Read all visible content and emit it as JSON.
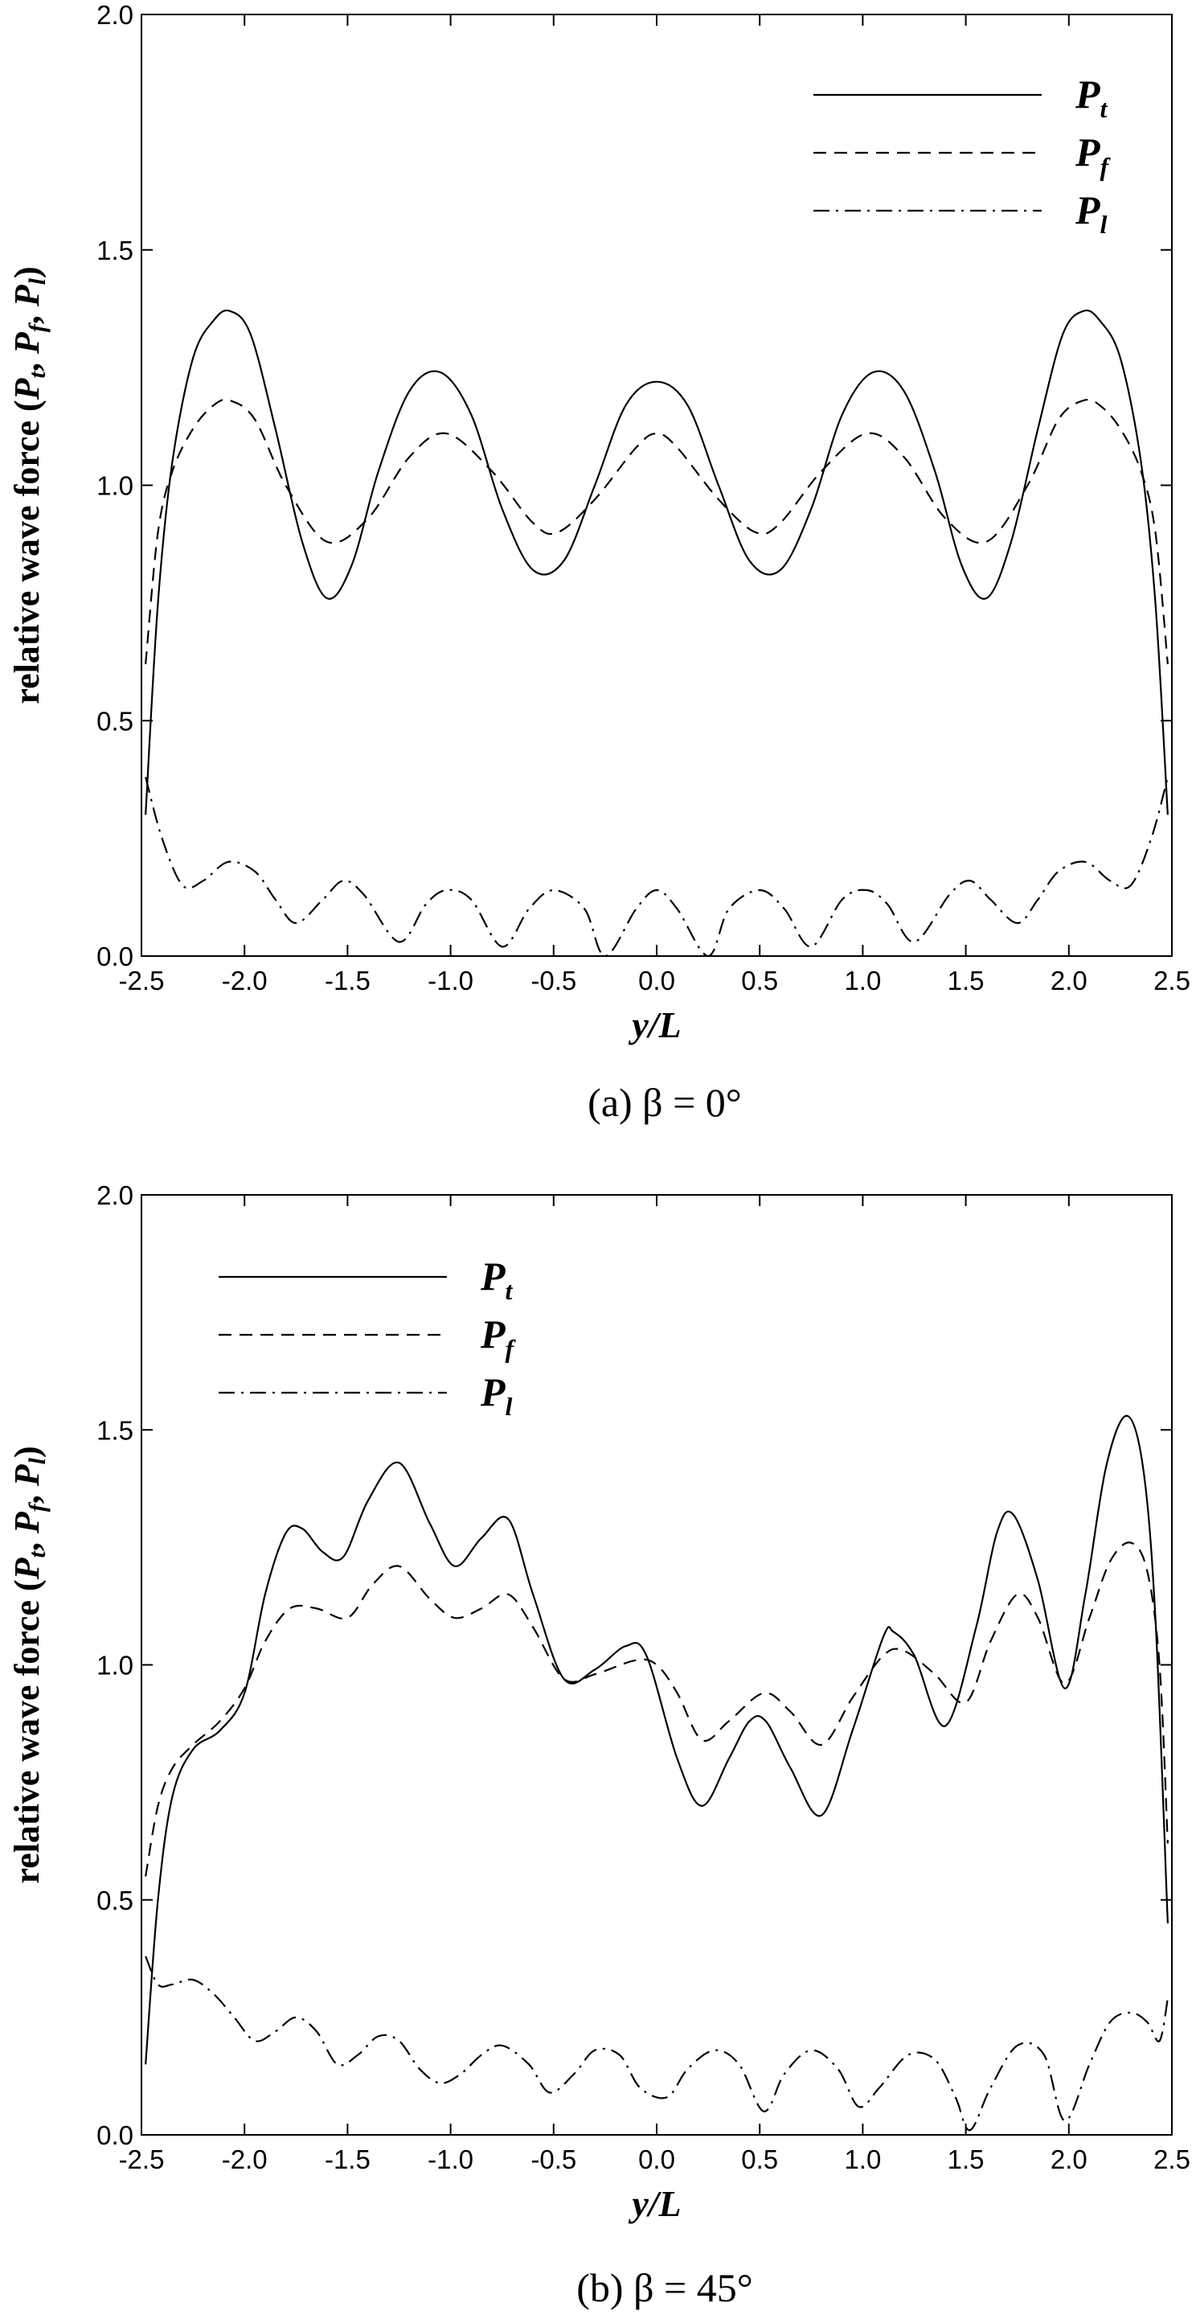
{
  "chart_data": [
    {
      "type": "line",
      "caption": "(a)  β = 0°",
      "xlabel": "y/L",
      "ylabel": "relative wave force (P",
      "ylabel_parts": [
        "relative wave force (",
        "P",
        "t",
        ", ",
        "P",
        "f",
        ", ",
        "P",
        "l",
        ")"
      ],
      "xlim": [
        -2.5,
        2.5
      ],
      "ylim": [
        0.0,
        2.0
      ],
      "xticks": [
        -2.5,
        -2.0,
        -1.5,
        -1.0,
        -0.5,
        0.0,
        0.5,
        1.0,
        1.5,
        2.0,
        2.5
      ],
      "xtick_labels": [
        "-2.5",
        "-2.0",
        "-1.5",
        "-1.0",
        "-0.5",
        "0.0",
        "0.5",
        "1.0",
        "1.5",
        "2.0",
        "2.5"
      ],
      "yticks": [
        0.0,
        0.5,
        1.0,
        1.5,
        2.0
      ],
      "ytick_labels": [
        "0.0",
        "0.5",
        "1.0",
        "1.5",
        "2.0"
      ],
      "legend_position": "top-right",
      "series": [
        {
          "name": "P",
          "sub": "t",
          "style": "solid",
          "x": [
            -2.48,
            -2.42,
            -2.35,
            -2.25,
            -2.15,
            -2.07,
            -1.97,
            -1.85,
            -1.72,
            -1.6,
            -1.48,
            -1.35,
            -1.2,
            -1.05,
            -0.9,
            -0.75,
            -0.6,
            -0.45,
            -0.3,
            -0.15,
            0.0,
            0.15,
            0.3,
            0.45,
            0.6,
            0.75,
            0.9,
            1.05,
            1.2,
            1.35,
            1.48,
            1.6,
            1.72,
            1.85,
            1.97,
            2.07,
            2.15,
            2.25,
            2.35,
            2.42,
            2.48
          ],
          "y": [
            0.3,
            0.75,
            1.05,
            1.27,
            1.35,
            1.37,
            1.32,
            1.12,
            0.88,
            0.76,
            0.83,
            1.03,
            1.2,
            1.24,
            1.15,
            0.95,
            0.82,
            0.84,
            1.0,
            1.17,
            1.22,
            1.17,
            1.0,
            0.84,
            0.82,
            0.95,
            1.15,
            1.24,
            1.2,
            1.03,
            0.83,
            0.76,
            0.88,
            1.12,
            1.32,
            1.37,
            1.35,
            1.27,
            1.05,
            0.75,
            0.3
          ]
        },
        {
          "name": "P",
          "sub": "f",
          "style": "dashed",
          "x": [
            -2.48,
            -2.42,
            -2.35,
            -2.25,
            -2.15,
            -2.07,
            -1.95,
            -1.8,
            -1.6,
            -1.4,
            -1.2,
            -1.02,
            -0.8,
            -0.6,
            -0.48,
            -0.3,
            -0.1,
            0.0,
            0.1,
            0.3,
            0.48,
            0.6,
            0.8,
            1.02,
            1.2,
            1.4,
            1.6,
            1.8,
            1.95,
            2.07,
            2.15,
            2.25,
            2.35,
            2.42,
            2.48
          ],
          "y": [
            0.62,
            0.9,
            1.03,
            1.12,
            1.17,
            1.18,
            1.14,
            1.0,
            0.88,
            0.93,
            1.06,
            1.11,
            1.03,
            0.92,
            0.9,
            0.97,
            1.08,
            1.11,
            1.08,
            0.97,
            0.9,
            0.92,
            1.03,
            1.11,
            1.06,
            0.93,
            0.88,
            1.0,
            1.14,
            1.18,
            1.17,
            1.12,
            1.03,
            0.9,
            0.62
          ]
        },
        {
          "name": "P",
          "sub": "l",
          "style": "dashdot",
          "x": [
            -2.48,
            -2.4,
            -2.3,
            -2.2,
            -2.08,
            -1.95,
            -1.85,
            -1.75,
            -1.62,
            -1.52,
            -1.42,
            -1.25,
            -1.12,
            -1.02,
            -0.9,
            -0.75,
            -0.62,
            -0.5,
            -0.35,
            -0.25,
            -0.1,
            0.0,
            0.1,
            0.25,
            0.35,
            0.5,
            0.62,
            0.75,
            0.9,
            1.02,
            1.12,
            1.25,
            1.42,
            1.52,
            1.62,
            1.75,
            1.85,
            1.95,
            2.08,
            2.2,
            2.3,
            2.4,
            2.48
          ],
          "y": [
            0.38,
            0.25,
            0.15,
            0.16,
            0.2,
            0.18,
            0.12,
            0.07,
            0.12,
            0.16,
            0.13,
            0.03,
            0.11,
            0.14,
            0.12,
            0.02,
            0.1,
            0.14,
            0.1,
            0.0,
            0.1,
            0.14,
            0.1,
            0.0,
            0.1,
            0.14,
            0.1,
            0.02,
            0.12,
            0.14,
            0.11,
            0.03,
            0.13,
            0.16,
            0.12,
            0.07,
            0.12,
            0.18,
            0.2,
            0.16,
            0.15,
            0.25,
            0.38
          ]
        }
      ]
    },
    {
      "type": "line",
      "caption": "(b)  β = 45°",
      "xlabel": "y/L",
      "ylabel": "relative wave force (P",
      "ylabel_parts": [
        "relative wave force (",
        "P",
        "t",
        ", ",
        "P",
        "f",
        ", ",
        "P",
        "l",
        ")"
      ],
      "xlim": [
        -2.5,
        2.5
      ],
      "ylim": [
        0.0,
        2.0
      ],
      "xticks": [
        -2.5,
        -2.0,
        -1.5,
        -1.0,
        -0.5,
        0.0,
        0.5,
        1.0,
        1.5,
        2.0,
        2.5
      ],
      "xtick_labels": [
        "-2.5",
        "-2.0",
        "-1.5",
        "-1.0",
        "-0.5",
        "0.0",
        "0.5",
        "1.0",
        "1.5",
        "2.0",
        "2.5"
      ],
      "yticks": [
        0.0,
        0.5,
        1.0,
        1.5,
        2.0
      ],
      "ytick_labels": [
        "0.0",
        "0.5",
        "1.0",
        "1.5",
        "2.0"
      ],
      "legend_position": "top-left",
      "series": [
        {
          "name": "P",
          "sub": "t",
          "style": "solid",
          "x": [
            -2.48,
            -2.42,
            -2.35,
            -2.25,
            -2.12,
            -2.0,
            -1.9,
            -1.8,
            -1.72,
            -1.62,
            -1.52,
            -1.4,
            -1.25,
            -1.1,
            -0.98,
            -0.85,
            -0.72,
            -0.6,
            -0.45,
            -0.3,
            -0.15,
            -0.05,
            0.1,
            0.22,
            0.35,
            0.45,
            0.53,
            0.65,
            0.8,
            0.95,
            1.1,
            1.15,
            1.25,
            1.4,
            1.55,
            1.65,
            1.73,
            1.85,
            1.98,
            2.08,
            2.18,
            2.28,
            2.36,
            2.42,
            2.48
          ],
          "y": [
            0.15,
            0.5,
            0.72,
            0.82,
            0.86,
            0.94,
            1.15,
            1.28,
            1.29,
            1.24,
            1.23,
            1.35,
            1.43,
            1.3,
            1.21,
            1.27,
            1.31,
            1.15,
            0.97,
            0.99,
            1.04,
            1.02,
            0.8,
            0.7,
            0.8,
            0.88,
            0.88,
            0.78,
            0.68,
            0.86,
            1.06,
            1.07,
            1.02,
            0.87,
            1.08,
            1.28,
            1.32,
            1.18,
            0.95,
            1.15,
            1.42,
            1.53,
            1.42,
            1.1,
            0.45
          ]
        },
        {
          "name": "P",
          "sub": "f",
          "style": "dashed",
          "x": [
            -2.48,
            -2.42,
            -2.35,
            -2.25,
            -2.12,
            -2.0,
            -1.9,
            -1.78,
            -1.65,
            -1.5,
            -1.38,
            -1.25,
            -1.1,
            -0.98,
            -0.85,
            -0.72,
            -0.6,
            -0.45,
            -0.3,
            -0.1,
            0.0,
            0.1,
            0.22,
            0.35,
            0.52,
            0.65,
            0.8,
            0.95,
            1.1,
            1.2,
            1.35,
            1.5,
            1.62,
            1.75,
            1.85,
            1.98,
            2.1,
            2.2,
            2.3,
            2.38,
            2.44,
            2.48
          ],
          "y": [
            0.55,
            0.7,
            0.78,
            0.83,
            0.88,
            0.95,
            1.05,
            1.12,
            1.12,
            1.1,
            1.17,
            1.21,
            1.14,
            1.1,
            1.12,
            1.15,
            1.08,
            0.97,
            0.98,
            1.01,
            1.0,
            0.94,
            0.84,
            0.88,
            0.94,
            0.9,
            0.83,
            0.93,
            1.02,
            1.03,
            0.98,
            0.92,
            1.05,
            1.15,
            1.1,
            0.96,
            1.1,
            1.22,
            1.26,
            1.2,
            1.0,
            0.62
          ]
        },
        {
          "name": "P",
          "sub": "l",
          "style": "dashdot",
          "x": [
            -2.48,
            -2.42,
            -2.35,
            -2.25,
            -2.15,
            -2.05,
            -1.95,
            -1.85,
            -1.75,
            -1.65,
            -1.55,
            -1.45,
            -1.35,
            -1.25,
            -1.15,
            -1.05,
            -0.95,
            -0.85,
            -0.75,
            -0.62,
            -0.52,
            -0.4,
            -0.3,
            -0.18,
            -0.08,
            0.05,
            0.15,
            0.28,
            0.4,
            0.52,
            0.62,
            0.75,
            0.88,
            0.98,
            1.08,
            1.22,
            1.35,
            1.45,
            1.52,
            1.62,
            1.75,
            1.88,
            1.98,
            2.1,
            2.2,
            2.3,
            2.38,
            2.44,
            2.48
          ],
          "y": [
            0.38,
            0.32,
            0.32,
            0.33,
            0.3,
            0.25,
            0.2,
            0.22,
            0.25,
            0.22,
            0.15,
            0.17,
            0.21,
            0.2,
            0.14,
            0.11,
            0.13,
            0.17,
            0.19,
            0.15,
            0.09,
            0.13,
            0.18,
            0.17,
            0.1,
            0.08,
            0.14,
            0.18,
            0.15,
            0.05,
            0.13,
            0.18,
            0.14,
            0.06,
            0.1,
            0.17,
            0.16,
            0.08,
            0.01,
            0.1,
            0.19,
            0.17,
            0.03,
            0.15,
            0.24,
            0.26,
            0.24,
            0.2,
            0.29
          ]
        }
      ]
    }
  ]
}
